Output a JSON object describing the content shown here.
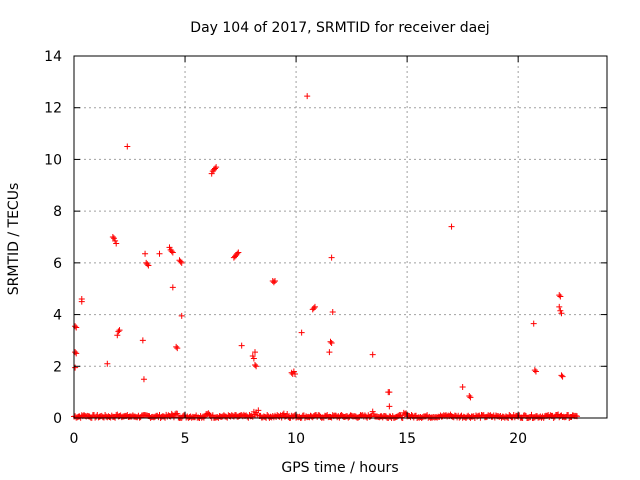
{
  "chart_data": {
    "type": "scatter",
    "title": "Day 104 of 2017, SRMTID for receiver daej",
    "xlabel": "GPS time / hours",
    "ylabel": "SRMTID / TECUs",
    "xlim": [
      0,
      24
    ],
    "ylim": [
      0,
      14
    ],
    "xticks": [
      0,
      5,
      10,
      15,
      20
    ],
    "yticks": [
      0,
      2,
      4,
      6,
      8,
      10,
      12,
      14
    ],
    "grid": true,
    "marker": "+",
    "color": "#ff0000",
    "series": [
      {
        "points": [
          [
            0.05,
            3.55
          ],
          [
            0.1,
            3.5
          ],
          [
            0.05,
            2.55
          ],
          [
            0.1,
            2.5
          ],
          [
            0.05,
            1.95
          ],
          [
            0.35,
            4.6
          ],
          [
            0.35,
            4.5
          ],
          [
            1.5,
            2.1
          ],
          [
            1.75,
            7.0
          ],
          [
            1.8,
            6.95
          ],
          [
            1.85,
            6.85
          ],
          [
            1.9,
            6.75
          ],
          [
            1.95,
            3.2
          ],
          [
            2.0,
            3.35
          ],
          [
            2.05,
            3.4
          ],
          [
            2.4,
            10.5
          ],
          [
            3.1,
            3.0
          ],
          [
            3.15,
            1.5
          ],
          [
            3.2,
            6.35
          ],
          [
            3.25,
            6.0
          ],
          [
            3.3,
            5.95
          ],
          [
            3.35,
            5.9
          ],
          [
            3.85,
            6.35
          ],
          [
            4.3,
            6.6
          ],
          [
            4.35,
            6.5
          ],
          [
            4.4,
            6.45
          ],
          [
            4.45,
            6.4
          ],
          [
            4.45,
            5.05
          ],
          [
            4.6,
            2.75
          ],
          [
            4.65,
            2.7
          ],
          [
            4.75,
            6.1
          ],
          [
            4.8,
            6.05
          ],
          [
            4.85,
            6.0
          ],
          [
            4.85,
            3.95
          ],
          [
            6.2,
            9.45
          ],
          [
            6.25,
            9.55
          ],
          [
            6.3,
            9.6
          ],
          [
            6.35,
            9.65
          ],
          [
            6.4,
            9.7
          ],
          [
            7.2,
            6.2
          ],
          [
            7.25,
            6.25
          ],
          [
            7.3,
            6.3
          ],
          [
            7.35,
            6.35
          ],
          [
            7.4,
            6.4
          ],
          [
            7.55,
            2.8
          ],
          [
            8.05,
            2.4
          ],
          [
            8.1,
            2.3
          ],
          [
            8.15,
            2.05
          ],
          [
            8.2,
            2.0
          ],
          [
            8.15,
            2.55
          ],
          [
            8.95,
            5.3
          ],
          [
            9.0,
            5.25
          ],
          [
            9.05,
            5.3
          ],
          [
            9.8,
            1.75
          ],
          [
            9.85,
            1.7
          ],
          [
            9.9,
            1.8
          ],
          [
            9.95,
            1.7
          ],
          [
            10.25,
            3.3
          ],
          [
            10.5,
            12.45
          ],
          [
            10.75,
            4.2
          ],
          [
            10.8,
            4.25
          ],
          [
            10.85,
            4.3
          ],
          [
            11.5,
            2.55
          ],
          [
            11.55,
            2.95
          ],
          [
            11.6,
            2.9
          ],
          [
            11.6,
            6.2
          ],
          [
            11.65,
            4.1
          ],
          [
            13.45,
            2.45
          ],
          [
            14.15,
            1.0
          ],
          [
            14.2,
            1.0
          ],
          [
            14.2,
            0.45
          ],
          [
            17.0,
            7.4
          ],
          [
            17.5,
            1.2
          ],
          [
            17.8,
            0.85
          ],
          [
            17.85,
            0.8
          ],
          [
            20.7,
            3.65
          ],
          [
            20.75,
            1.85
          ],
          [
            20.8,
            1.8
          ],
          [
            21.85,
            4.75
          ],
          [
            21.9,
            4.7
          ],
          [
            21.85,
            4.3
          ],
          [
            21.9,
            4.15
          ],
          [
            21.95,
            4.05
          ],
          [
            21.95,
            1.65
          ],
          [
            22.0,
            1.6
          ]
        ],
        "baseline": {
          "x_range": [
            0.0,
            22.7
          ],
          "x_step": 0.05,
          "y_range": [
            0.0,
            0.12
          ],
          "bumps": [
            {
              "x": 0.5,
              "y": 0.15
            },
            {
              "x": 2.1,
              "y": 0.15
            },
            {
              "x": 4.5,
              "y": 0.2
            },
            {
              "x": 6.0,
              "y": 0.2
            },
            {
              "x": 8.2,
              "y": 0.3
            },
            {
              "x": 9.5,
              "y": 0.3
            },
            {
              "x": 13.5,
              "y": 0.25
            },
            {
              "x": 15.0,
              "y": 0.2
            },
            {
              "x": 16.9,
              "y": 0.15
            },
            {
              "x": 21.8,
              "y": 0.15
            },
            {
              "x": 22.6,
              "y": 0.1
            }
          ]
        }
      }
    ]
  }
}
